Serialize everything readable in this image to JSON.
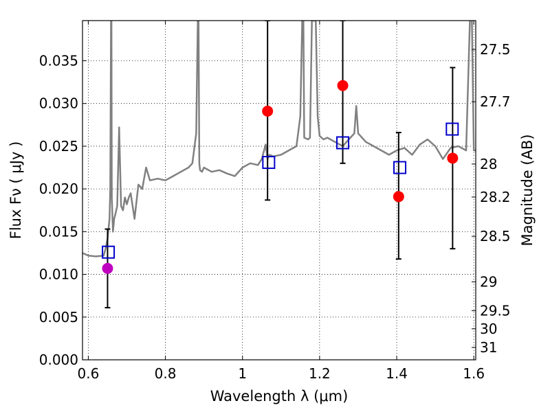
{
  "chart_data": {
    "type": "scatter",
    "title": "",
    "xlabel": "Wavelength  λ (μm)",
    "ylabel": "Flux  Fν ( μJy )",
    "y2label": "Magnitude (AB)",
    "xlim": [
      0.585,
      1.605
    ],
    "ylim": [
      0.0,
      0.0397
    ],
    "grid": true,
    "x_ticks": [
      0.6,
      0.8,
      1.0,
      1.2,
      1.4,
      1.6
    ],
    "x_tick_labels": [
      "0.6",
      "0.8",
      "1",
      "1.2",
      "1.4",
      "1.6"
    ],
    "y_ticks": [
      0.0,
      0.005,
      0.01,
      0.015,
      0.02,
      0.025,
      0.03,
      0.035
    ],
    "y_tick_labels": [
      "0.000",
      "0.005",
      "0.010",
      "0.015",
      "0.020",
      "0.025",
      "0.030",
      "0.035"
    ],
    "y2_ticks": [
      {
        "label": "27.5",
        "flux": 0.03631
      },
      {
        "label": "27.7",
        "flux": 0.0302
      },
      {
        "label": "28",
        "flux": 0.02291
      },
      {
        "label": "28.2",
        "flux": 0.01905
      },
      {
        "label": "28.5",
        "flux": 0.01445
      },
      {
        "label": "29",
        "flux": 0.00912
      },
      {
        "label": "29.5",
        "flux": 0.00575
      },
      {
        "label": "30",
        "flux": 0.00363
      },
      {
        "label": "31",
        "flux": 0.00145
      }
    ],
    "observed": [
      {
        "x": 0.65,
        "y": 0.0107,
        "yerr_low": 0.0061,
        "yerr_high": 0.0153,
        "color": "#bf00bf"
      },
      {
        "x": 1.065,
        "y": 0.0291,
        "yerr_low": 0.0187,
        "yerr_high": 0.0397,
        "color": "#ff0000"
      },
      {
        "x": 1.26,
        "y": 0.0321,
        "yerr_low": 0.023,
        "yerr_high": 0.0397,
        "color": "#ff0000"
      },
      {
        "x": 1.405,
        "y": 0.0191,
        "yerr_low": 0.0118,
        "yerr_high": 0.0266,
        "color": "#ff0000"
      },
      {
        "x": 1.545,
        "y": 0.0236,
        "yerr_low": 0.013,
        "yerr_high": 0.0342,
        "color": "#ff0000"
      }
    ],
    "model_points": [
      {
        "x": 0.652,
        "y": 0.0126
      },
      {
        "x": 1.068,
        "y": 0.0231
      },
      {
        "x": 1.26,
        "y": 0.0254
      },
      {
        "x": 1.408,
        "y": 0.0225
      },
      {
        "x": 1.544,
        "y": 0.027
      }
    ],
    "spectrum": {
      "name": "model SED",
      "color": "#808080",
      "x": [
        0.585,
        0.6,
        0.62,
        0.64,
        0.645,
        0.65,
        0.655,
        0.657,
        0.659,
        0.66,
        0.661,
        0.664,
        0.667,
        0.67,
        0.675,
        0.68,
        0.685,
        0.69,
        0.695,
        0.7,
        0.705,
        0.71,
        0.72,
        0.73,
        0.74,
        0.75,
        0.76,
        0.78,
        0.8,
        0.82,
        0.84,
        0.86,
        0.87,
        0.88,
        0.884,
        0.886,
        0.888,
        0.89,
        0.895,
        0.9,
        0.92,
        0.94,
        0.96,
        0.98,
        1.0,
        1.02,
        1.04,
        1.05,
        1.06,
        1.065,
        1.07,
        1.08,
        1.1,
        1.12,
        1.14,
        1.15,
        1.155,
        1.158,
        1.16,
        1.17,
        1.175,
        1.18,
        1.19,
        1.195,
        1.2,
        1.21,
        1.22,
        1.24,
        1.26,
        1.28,
        1.29,
        1.295,
        1.3,
        1.32,
        1.34,
        1.36,
        1.38,
        1.4,
        1.42,
        1.44,
        1.46,
        1.48,
        1.5,
        1.52,
        1.54,
        1.56,
        1.58,
        1.59,
        1.595,
        1.6,
        1.605
      ],
      "y": [
        0.0125,
        0.0122,
        0.0121,
        0.0122,
        0.013,
        0.0142,
        0.0165,
        0.02,
        0.0397,
        0.0397,
        0.019,
        0.015,
        0.0165,
        0.017,
        0.018,
        0.0272,
        0.018,
        0.0175,
        0.019,
        0.0182,
        0.019,
        0.0195,
        0.0165,
        0.0205,
        0.02,
        0.0225,
        0.021,
        0.0212,
        0.021,
        0.0215,
        0.022,
        0.0225,
        0.023,
        0.0265,
        0.0397,
        0.0397,
        0.023,
        0.0222,
        0.022,
        0.0225,
        0.022,
        0.0222,
        0.0218,
        0.0215,
        0.0225,
        0.023,
        0.0228,
        0.0235,
        0.0252,
        0.0235,
        0.024,
        0.0238,
        0.024,
        0.0245,
        0.025,
        0.0285,
        0.0397,
        0.0397,
        0.026,
        0.0258,
        0.026,
        0.0397,
        0.0397,
        0.0285,
        0.0262,
        0.0258,
        0.026,
        0.0255,
        0.025,
        0.026,
        0.0265,
        0.0297,
        0.0265,
        0.0255,
        0.025,
        0.0245,
        0.024,
        0.0245,
        0.0248,
        0.024,
        0.0252,
        0.0258,
        0.025,
        0.0235,
        0.0248,
        0.025,
        0.0245,
        0.04,
        0.0397,
        0.0245,
        0.0245
      ]
    }
  }
}
